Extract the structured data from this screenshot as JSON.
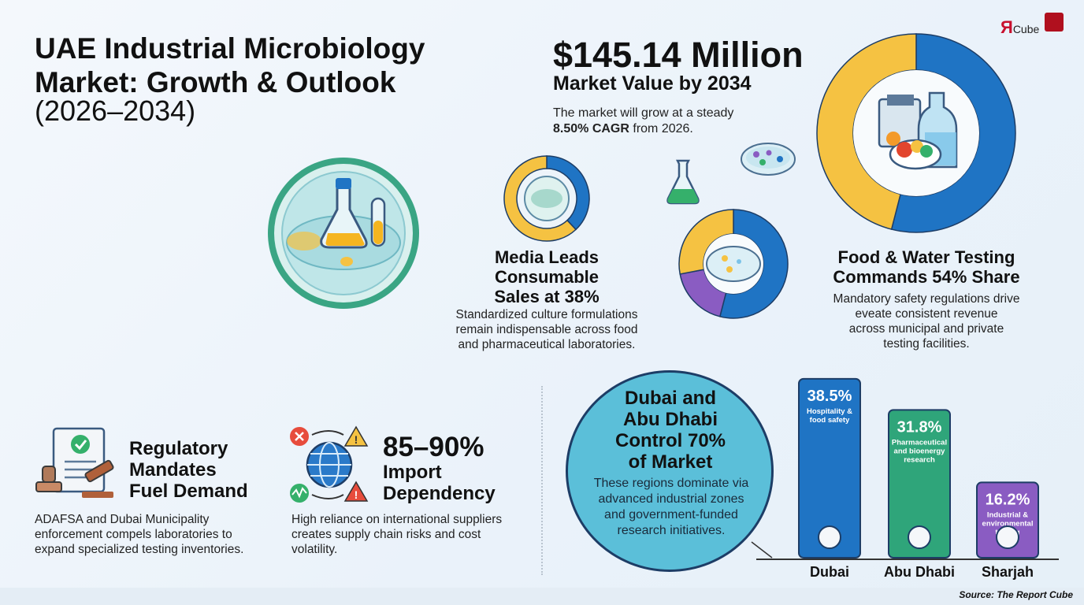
{
  "header": {
    "title_line1": "UAE Industrial Microbiology",
    "title_line2": "Market: Growth & Outlook",
    "years": "(2026–2034)"
  },
  "logo": {
    "mark": "Я",
    "text": "Cube"
  },
  "market_value": {
    "value": "$145.14 Million",
    "label": "Market Value by 2034",
    "desc_line1": "The market will grow at a steady",
    "desc_cagr": "8.50% CAGR",
    "desc_tail": " from 2026."
  },
  "media": {
    "title_line1": "Media Leads",
    "title_line2": "Consumable",
    "title_line3": "Sales at 38%",
    "desc_line1": "Standardized culture formulations",
    "desc_line2": "remain indispensable across food",
    "desc_line3": "and pharmaceutical laboratories."
  },
  "food": {
    "title_line1": "Food & Water Testing",
    "title_line2": "Commands 54% Share",
    "desc_line1": "Mandatory safety regulations drive",
    "desc_line2": "eveate consistent revenue",
    "desc_line3": "across municipal and private",
    "desc_line4": "testing facilities."
  },
  "regulatory": {
    "title_line1": "Regulatory",
    "title_line2": "Mandates",
    "title_line3": "Fuel Demand",
    "desc_line1": "ADAFSA and Dubai Municipality",
    "desc_line2": "enforcement compels laboratories to",
    "desc_line3": "expand specialized testing inventories."
  },
  "import": {
    "value": "85–90%",
    "title_line1": "Import",
    "title_line2": "Dependency",
    "desc_line1": "High reliance on international suppliers",
    "desc_line2": "creates supply chain risks and cost",
    "desc_line3": "volatility."
  },
  "regions": {
    "title_line1": "Dubai and",
    "title_line2": "Abu Dhabi",
    "title_line3": "Control 70%",
    "title_line4": "of Market",
    "desc_line1": "These regions dominate via",
    "desc_line2": "advanced industrial zones",
    "desc_line3": "and government-funded",
    "desc_line4": "research initiatives."
  },
  "colors": {
    "blue": "#1f74c4",
    "yellow": "#f5c242",
    "green": "#2fa57a",
    "purple": "#8a5cc2",
    "teal_circle": "#5bbfd9"
  },
  "chart_data": [
    {
      "type": "pie",
      "name_hint": "media donut",
      "values": [
        38,
        62
      ],
      "colors": [
        "#1f74c4",
        "#f5c242"
      ]
    },
    {
      "type": "pie",
      "name_hint": "food donut",
      "values": [
        54,
        46
      ],
      "colors": [
        "#1f74c4",
        "#f5c242"
      ]
    },
    {
      "type": "bar",
      "categories": [
        "Dubai",
        "Abu Dhabi",
        "Sharjah"
      ],
      "values": [
        38.5,
        31.8,
        16.2
      ],
      "value_labels": [
        "38.5%",
        "31.8%",
        "16.2%"
      ],
      "descriptions": [
        "Hospitality & food safety",
        "Pharmaceutical and bioenergy research",
        "Industrial & environmental testing"
      ],
      "colors": [
        "#1f74c4",
        "#2fa57a",
        "#8a5cc2"
      ],
      "ylim": [
        0,
        40
      ]
    }
  ],
  "source": "Source: The Report Cube"
}
